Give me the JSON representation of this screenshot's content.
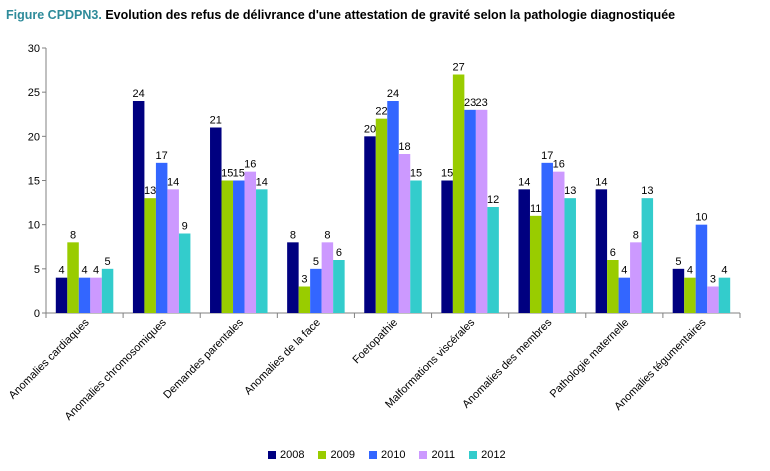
{
  "header": {
    "figure_label": "Figure CPDPN3.",
    "title": "Evolution des refus de délivrance d'une attestation de gravité selon la pathologie diagnostiquée"
  },
  "chart_data": {
    "type": "bar",
    "title": "Evolution des refus de délivrance d'une attestation de gravité selon la pathologie diagnostiquée",
    "xlabel": "",
    "ylabel": "",
    "ylim": [
      0,
      30
    ],
    "yticks": [
      0,
      5,
      10,
      15,
      20,
      25,
      30
    ],
    "grid": false,
    "legend_position": "bottom",
    "categories": [
      "Anomalies cardiaques",
      "Anomalies chromosomiques",
      "Demandes parentales",
      "Anomalies de la face",
      "Foetopathie",
      "Malformations viscérales",
      "Anomalies des membres",
      "Pathologie maternelle",
      "Anomalies tégumentaires"
    ],
    "series": [
      {
        "name": "2008",
        "color": "#000080",
        "values": [
          4,
          24,
          21,
          8,
          20,
          15,
          14,
          14,
          5
        ]
      },
      {
        "name": "2009",
        "color": "#99cc00",
        "values": [
          8,
          13,
          15,
          3,
          22,
          27,
          11,
          6,
          4
        ]
      },
      {
        "name": "2010",
        "color": "#3366ff",
        "values": [
          4,
          17,
          15,
          5,
          24,
          23,
          17,
          4,
          10
        ]
      },
      {
        "name": "2011",
        "color": "#cc99ff",
        "values": [
          4,
          14,
          16,
          8,
          18,
          23,
          16,
          8,
          3
        ]
      },
      {
        "name": "2012",
        "color": "#33cccc",
        "values": [
          5,
          9,
          14,
          6,
          15,
          12,
          13,
          13,
          4
        ]
      }
    ]
  }
}
